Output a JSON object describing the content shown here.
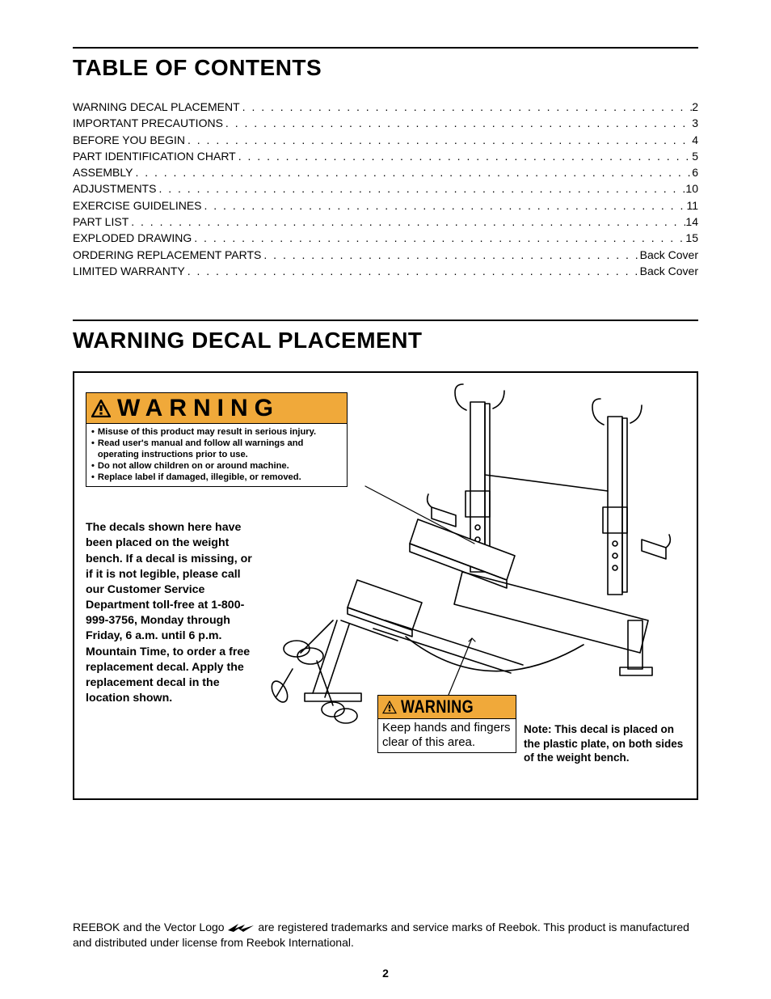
{
  "headings": {
    "toc": "TABLE OF CONTENTS",
    "placement": "WARNING DECAL PLACEMENT"
  },
  "toc": [
    {
      "label": "WARNING DECAL PLACEMENT",
      "page": "2"
    },
    {
      "label": "IMPORTANT PRECAUTIONS",
      "page": "3"
    },
    {
      "label": "BEFORE YOU BEGIN",
      "page": "4"
    },
    {
      "label": "PART IDENTIFICATION CHART",
      "page": "5"
    },
    {
      "label": "ASSEMBLY",
      "page": "6"
    },
    {
      "label": "ADJUSTMENTS",
      "page": "10"
    },
    {
      "label": "EXERCISE GUIDELINES",
      "page": "11"
    },
    {
      "label": "PART LIST",
      "page": "14"
    },
    {
      "label": "EXPLODED DRAWING",
      "page": "15"
    },
    {
      "label": "ORDERING REPLACEMENT PARTS",
      "page": "Back Cover"
    },
    {
      "label": "LIMITED WARRANTY",
      "page": "Back Cover"
    }
  ],
  "decal1": {
    "title": "WARNING",
    "bullets": [
      "Misuse of this product may result in serious injury.",
      "Read user's manual and follow all warnings and operating instructions prior to use.",
      "Do not allow children on or around machine.",
      "Replace label if damaged, illegible, or  removed."
    ]
  },
  "decal_note": "The decals shown here have been placed on the weight bench. If a decal is missing, or if it is not legible, please call our Customer Service Department toll-free at 1-800-999-3756, Monday through Friday, 6 a.m. until 6 p.m. Mountain Time, to order a free replacement decal. Apply the replacement decal in the location shown.",
  "decal2": {
    "title": "WARNING",
    "body": "Keep hands and fingers clear of this area."
  },
  "side_note": "Note: This decal is placed on the plastic plate, on both sides of the weight bench.",
  "trademark": {
    "pre": "REEBOK and the Vector Logo ",
    "post": " are registered trademarks and service marks of Reebok. This product is manufactured and distributed under license from Reebok International."
  },
  "page_number": "2",
  "colors": {
    "warn_bg": "#f0a93a",
    "line": "#000000"
  }
}
